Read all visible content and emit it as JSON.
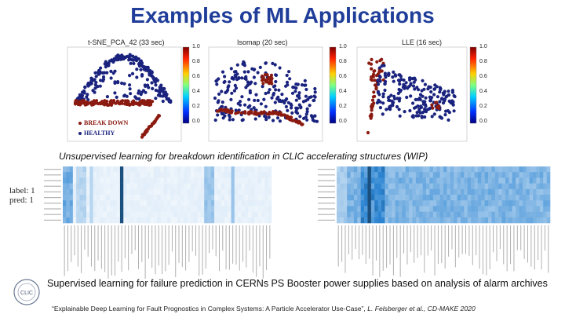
{
  "slide": {
    "title": "Examples of  ML Applications",
    "caption_unsupervised": "Unsupervised learning for breakdown identification in CLIC accelerating structures (WIP)",
    "caption_supervised": "Supervised learning for failure prediction in CERNs PS Booster power supplies based on analysis of alarm archives",
    "reference_text": "“Explainable Deep Learning for Fault Prognostics in Complex Systems: A Particle Accelerator Use-Case”, ",
    "reference_authors": "L. Felsberger et al., CD-MAKE 2020",
    "logo_text": "CLIC"
  },
  "scatter_panels": [
    {
      "title": "t-SNE_PCA_42 (33 sec)",
      "colorbar_ticks": [
        "1.0",
        "0.8",
        "0.6",
        "0.4",
        "0.2",
        "0.0"
      ],
      "legend": [
        {
          "label": "BREAK DOWN",
          "color": "#8b1a10"
        },
        {
          "label": "HEALTHY",
          "color": "#1a237e"
        }
      ]
    },
    {
      "title": "Isomap (20 sec)",
      "colorbar_ticks": [
        "1.0",
        "0.8",
        "0.6",
        "0.4",
        "0.2",
        "0.0"
      ]
    },
    {
      "title": "LLE (16 sec)",
      "colorbar_ticks": [
        "1.0",
        "0.8",
        "0.6",
        "0.4",
        "0.2",
        "0.0"
      ]
    }
  ],
  "heatmap_panel": {
    "labels": [
      "label: 1",
      "pred: 1"
    ]
  },
  "colors": {
    "title": "#1f3d99",
    "healthy": "#1a237e",
    "breakdown": "#8b1a10"
  }
}
